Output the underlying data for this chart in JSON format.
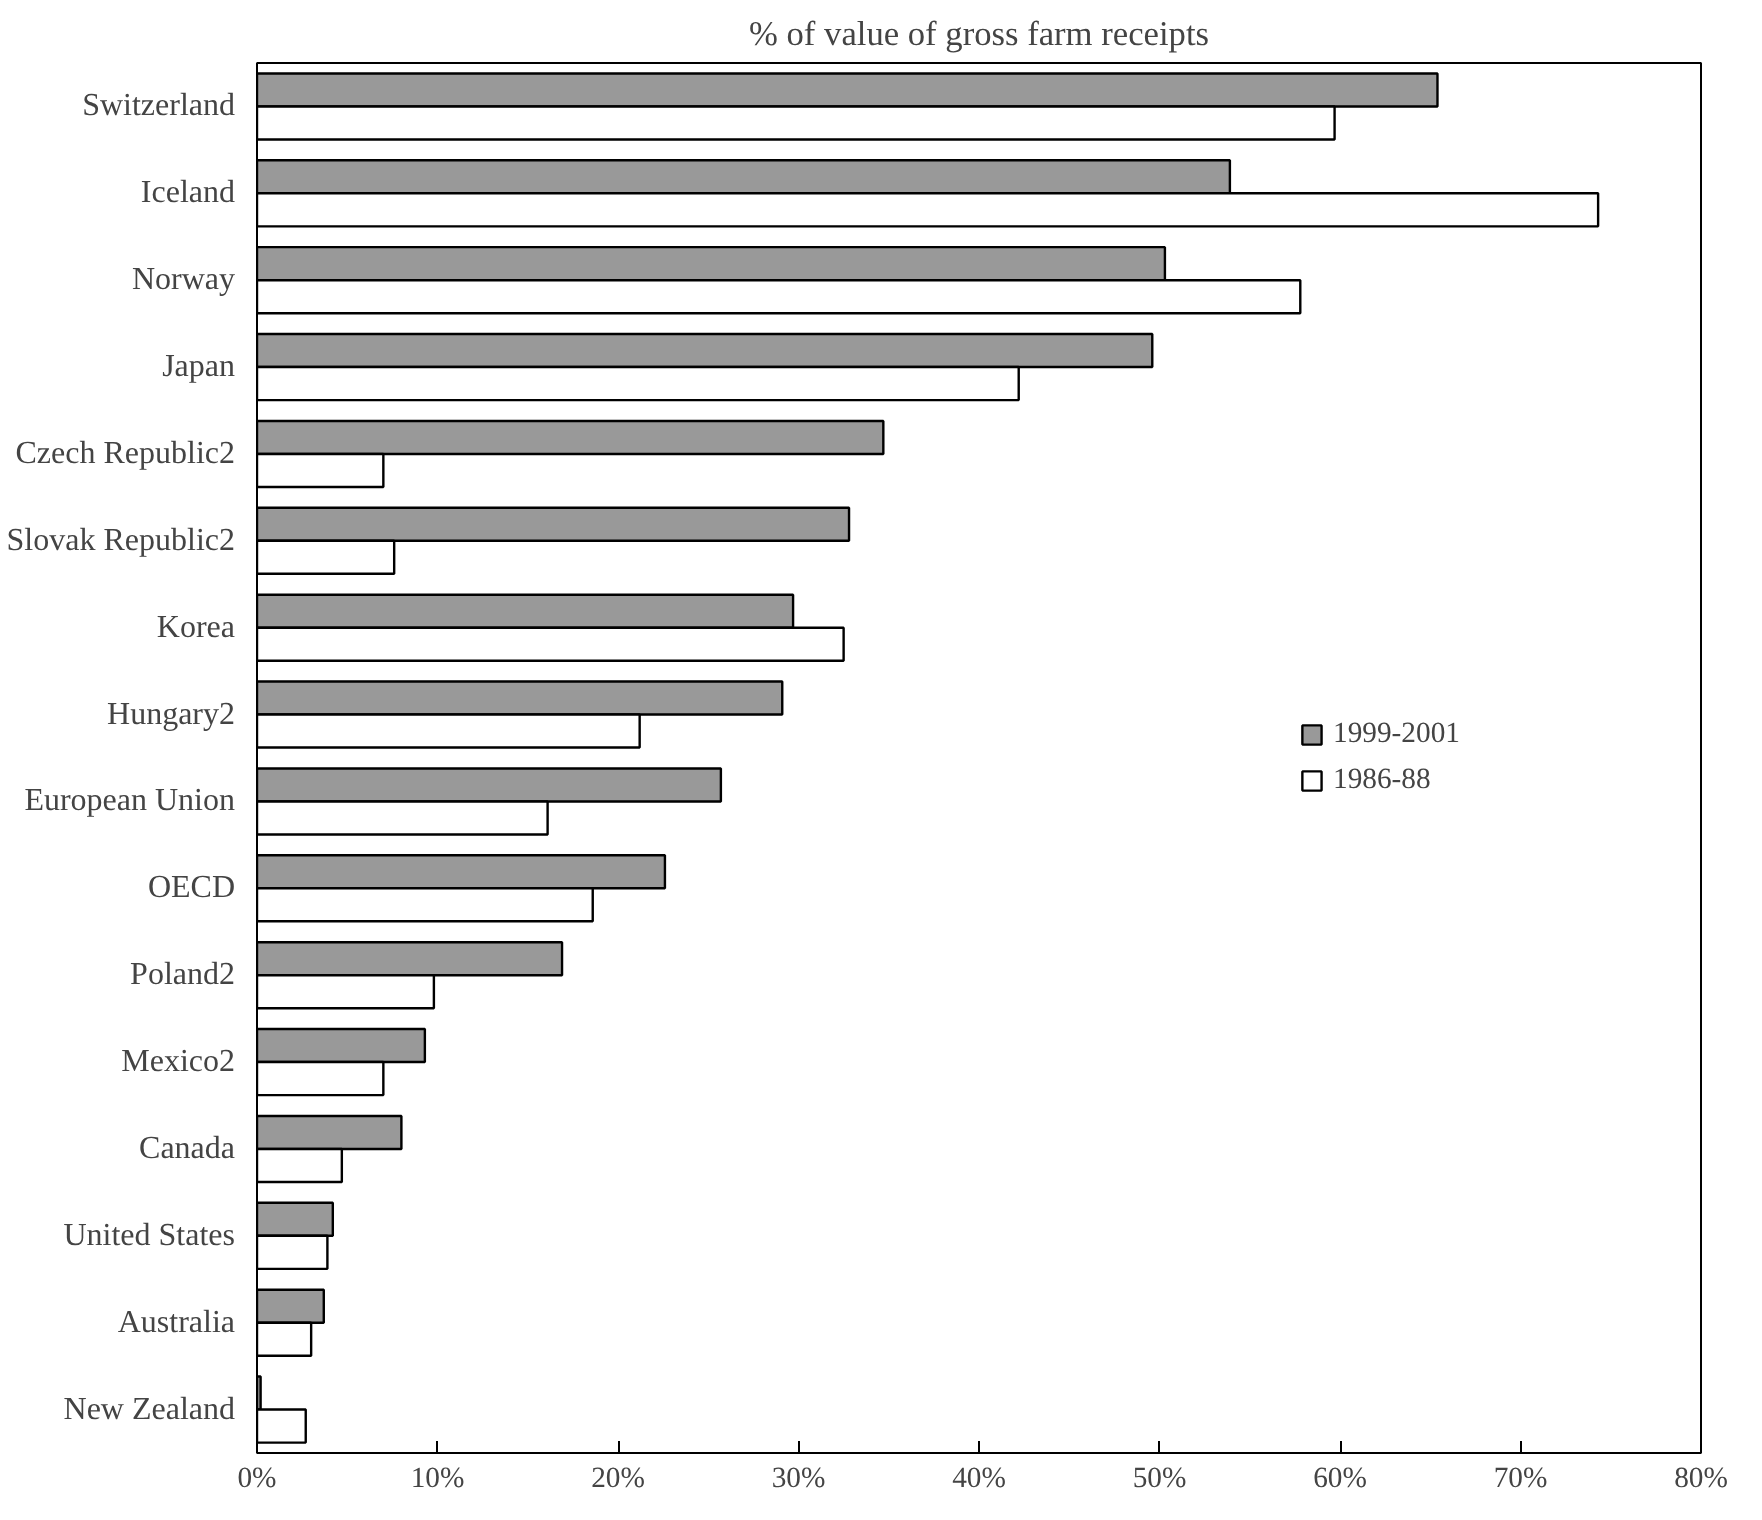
{
  "chart_data": {
    "type": "bar",
    "orientation": "horizontal",
    "title": "% of value of gross farm receipts",
    "categories": [
      "Switzerland",
      "Iceland",
      "Norway",
      "Japan",
      "Czech Republic2",
      "Slovak Republic2",
      "Korea",
      "Hungary2",
      "European Union",
      "OECD",
      "Poland2",
      "Mexico2",
      "Canada",
      "United States",
      "Australia",
      "New Zealand"
    ],
    "series": [
      {
        "name": "1999-2001",
        "color": "#999999",
        "values": [
          65.4,
          53.9,
          50.3,
          49.6,
          34.7,
          32.8,
          29.7,
          29.1,
          25.7,
          22.6,
          16.9,
          9.3,
          8.0,
          4.2,
          3.7,
          0.2
        ]
      },
      {
        "name": "1986-88",
        "color": "#ffffff",
        "values": [
          59.7,
          74.3,
          57.8,
          42.2,
          7.0,
          7.6,
          32.5,
          21.2,
          16.1,
          18.6,
          9.8,
          7.0,
          4.7,
          3.9,
          3.0,
          2.7
        ]
      }
    ],
    "xlim": [
      0,
      80
    ],
    "xticks": [
      {
        "value": 0,
        "label": "0%"
      },
      {
        "value": 10,
        "label": "10%"
      },
      {
        "value": 20,
        "label": "20%"
      },
      {
        "value": 30,
        "label": "30%"
      },
      {
        "value": 40,
        "label": "40%"
      },
      {
        "value": 50,
        "label": "50%"
      },
      {
        "value": 60,
        "label": "60%"
      },
      {
        "value": 70,
        "label": "70%"
      },
      {
        "value": 80,
        "label": "80%"
      }
    ],
    "legend": "right",
    "grid": false
  }
}
